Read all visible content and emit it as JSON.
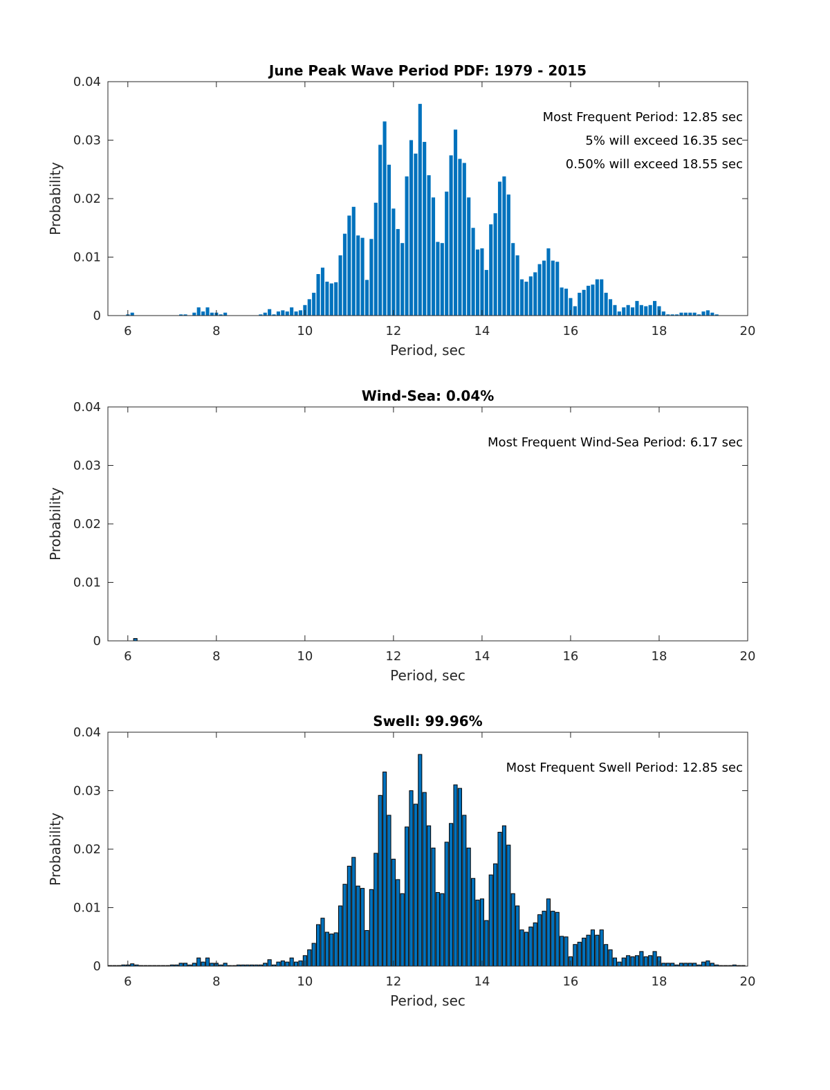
{
  "chart_data": [
    {
      "type": "bar",
      "title": "June Peak Wave Period PDF: 1979 - 2015",
      "xlabel": "Period, sec",
      "ylabel": "Probability",
      "xlim": [
        5.55,
        20
      ],
      "ylim": [
        0,
        0.04
      ],
      "xticks": [
        "6",
        "8",
        "10",
        "12",
        "14",
        "16",
        "18",
        "20"
      ],
      "yticks": [
        "0",
        "0.01",
        "0.02",
        "0.03",
        "0.04"
      ],
      "bar_color": "#0072BD",
      "bar_edge": false,
      "annotations": [
        "Most Frequent Period: 12.85 sec",
        "5% will exceed 16.35 sec",
        "0.50% will exceed 18.55 sec"
      ],
      "bin_start": 6.0,
      "bin_width": 0.1,
      "values": [
        0.0002,
        0.0005,
        0,
        0,
        0,
        0,
        0,
        0,
        0,
        0,
        0,
        0,
        0.0002,
        0.0002,
        0,
        0.0005,
        0.0014,
        0.0007,
        0.0014,
        0.0005,
        0.0005,
        0.0002,
        0.0005,
        0,
        0,
        0,
        0,
        0,
        0,
        0,
        0.0002,
        0.0005,
        0.0011,
        0.0002,
        0.0007,
        0.0009,
        0.0007,
        0.0014,
        0.0007,
        0.0009,
        0.0018,
        0.0028,
        0.0039,
        0.0071,
        0.0082,
        0.0058,
        0.0055,
        0.0057,
        0.0103,
        0.014,
        0.0171,
        0.0186,
        0.0137,
        0.0133,
        0.0061,
        0.0131,
        0.0193,
        0.0292,
        0.0332,
        0.0258,
        0.0183,
        0.0148,
        0.0124,
        0.0238,
        0.03,
        0.0277,
        0.0362,
        0.0297,
        0.024,
        0.0202,
        0.0126,
        0.0124,
        0.0212,
        0.0274,
        0.0318,
        0.0268,
        0.0261,
        0.0202,
        0.015,
        0.0113,
        0.0115,
        0.0078,
        0.0156,
        0.0175,
        0.0229,
        0.0238,
        0.0207,
        0.0124,
        0.0103,
        0.0062,
        0.0058,
        0.0067,
        0.0074,
        0.0088,
        0.0094,
        0.0115,
        0.0094,
        0.0092,
        0.0048,
        0.0046,
        0.003,
        0.0016,
        0.0039,
        0.0044,
        0.0051,
        0.0053,
        0.0062,
        0.0062,
        0.0039,
        0.0028,
        0.0018,
        0.0007,
        0.0014,
        0.0018,
        0.0014,
        0.0025,
        0.0018,
        0.0016,
        0.0018,
        0.0025,
        0.0016,
        0.0007,
        0.0002,
        0.0002,
        0.0002,
        0.0005,
        0.0005,
        0.0005,
        0.0005,
        0.0002,
        0.0007,
        0.0009,
        0.0005,
        0.0002
      ]
    },
    {
      "type": "bar",
      "title": "Wind-Sea: 0.04%",
      "xlabel": "Period, sec",
      "ylabel": "Probability",
      "xlim": [
        5.55,
        20
      ],
      "ylim": [
        0,
        0.04
      ],
      "xticks": [
        "6",
        "8",
        "10",
        "12",
        "14",
        "16",
        "18",
        "20"
      ],
      "yticks": [
        "0",
        "0.01",
        "0.02",
        "0.03",
        "0.04"
      ],
      "bar_color": "#0072BD",
      "bar_edge": true,
      "annotations": [
        "Most Frequent Wind-Sea Period: 6.17 sec"
      ],
      "bin_start": 6.17,
      "bin_width": 0.1,
      "values": [
        0.0004,
        0,
        0,
        0,
        0,
        0,
        0,
        0,
        0,
        0,
        0,
        0,
        0,
        0,
        0,
        0,
        0,
        0,
        0,
        0,
        0,
        0,
        0,
        0,
        0,
        0,
        0,
        0,
        0,
        0,
        0,
        0,
        0,
        0,
        0,
        0,
        0,
        0,
        0,
        0,
        0,
        0,
        0,
        0,
        0,
        0,
        0,
        0,
        0,
        0,
        0,
        0,
        0,
        0,
        0,
        0,
        0,
        0,
        0,
        0,
        0,
        0,
        0,
        0,
        0,
        0,
        0,
        0,
        0,
        0,
        0,
        0,
        0,
        0,
        0,
        0,
        0,
        0,
        0,
        0,
        0,
        0,
        0,
        0,
        0,
        0,
        0,
        0,
        0,
        0,
        0,
        0,
        0,
        0,
        0,
        0,
        0,
        0,
        0,
        0,
        0,
        0,
        0,
        0,
        0,
        0,
        0,
        0,
        0,
        0,
        0,
        0,
        0,
        0,
        0,
        0,
        0,
        0,
        0,
        0,
        0,
        0,
        0,
        0,
        0,
        0,
        0,
        0,
        0,
        0,
        0,
        0,
        0,
        0,
        0,
        0,
        0,
        0
      ]
    },
    {
      "type": "bar",
      "title": "Swell: 99.96%",
      "xlabel": "Period, sec",
      "ylabel": "Probability",
      "xlim": [
        5.55,
        20
      ],
      "ylim": [
        0,
        0.04
      ],
      "xticks": [
        "6",
        "8",
        "10",
        "12",
        "14",
        "16",
        "18",
        "20"
      ],
      "yticks": [
        "0",
        "0.01",
        "0.02",
        "0.03",
        "0.04"
      ],
      "bar_color": "#0072BD",
      "bar_edge": true,
      "annotations": [
        "Most Frequent Swell Period: 12.85 sec"
      ],
      "bin_start": 5.6,
      "bin_width": 0.1,
      "values": [
        0.0001,
        0.0001,
        0.0001,
        0.0002,
        0.0002,
        0.0004,
        0.0002,
        0.0001,
        0.0001,
        0.0001,
        0.0001,
        0.0001,
        0.0001,
        0.0001,
        0.0002,
        0.0002,
        0.0005,
        0.0005,
        0.0002,
        0.0005,
        0.0014,
        0.0007,
        0.0014,
        0.0005,
        0.0005,
        0.0002,
        0.0005,
        0.0001,
        0.0001,
        0.0002,
        0.0002,
        0.0002,
        0.0002,
        0.0002,
        0.0002,
        0.0005,
        0.0011,
        0.0002,
        0.0007,
        0.0009,
        0.0007,
        0.0014,
        0.0007,
        0.0009,
        0.0018,
        0.0028,
        0.0039,
        0.0071,
        0.0082,
        0.0058,
        0.0055,
        0.0057,
        0.0103,
        0.014,
        0.0171,
        0.0186,
        0.0137,
        0.0133,
        0.0061,
        0.0131,
        0.0193,
        0.0292,
        0.0332,
        0.0258,
        0.0183,
        0.0148,
        0.0124,
        0.0238,
        0.03,
        0.0277,
        0.0362,
        0.0297,
        0.024,
        0.0202,
        0.0126,
        0.0124,
        0.0212,
        0.0244,
        0.031,
        0.0304,
        0.0258,
        0.0202,
        0.015,
        0.0113,
        0.0115,
        0.0078,
        0.0156,
        0.0175,
        0.0229,
        0.024,
        0.0207,
        0.0124,
        0.0103,
        0.0062,
        0.0058,
        0.0067,
        0.0074,
        0.0088,
        0.0094,
        0.0115,
        0.0094,
        0.0092,
        0.0051,
        0.005,
        0.0016,
        0.0037,
        0.0041,
        0.0048,
        0.0053,
        0.0062,
        0.0053,
        0.0062,
        0.0037,
        0.0028,
        0.0014,
        0.0007,
        0.0014,
        0.0018,
        0.0016,
        0.0018,
        0.0025,
        0.0016,
        0.0018,
        0.0025,
        0.0016,
        0.0005,
        0.0005,
        0.0005,
        0.0002,
        0.0005,
        0.0005,
        0.0005,
        0.0005,
        0.0002,
        0.0007,
        0.0009,
        0.0005,
        0.0002,
        0.0001,
        0.0001,
        0.0001,
        0.0002,
        0.0001,
        0.0001
      ]
    }
  ]
}
